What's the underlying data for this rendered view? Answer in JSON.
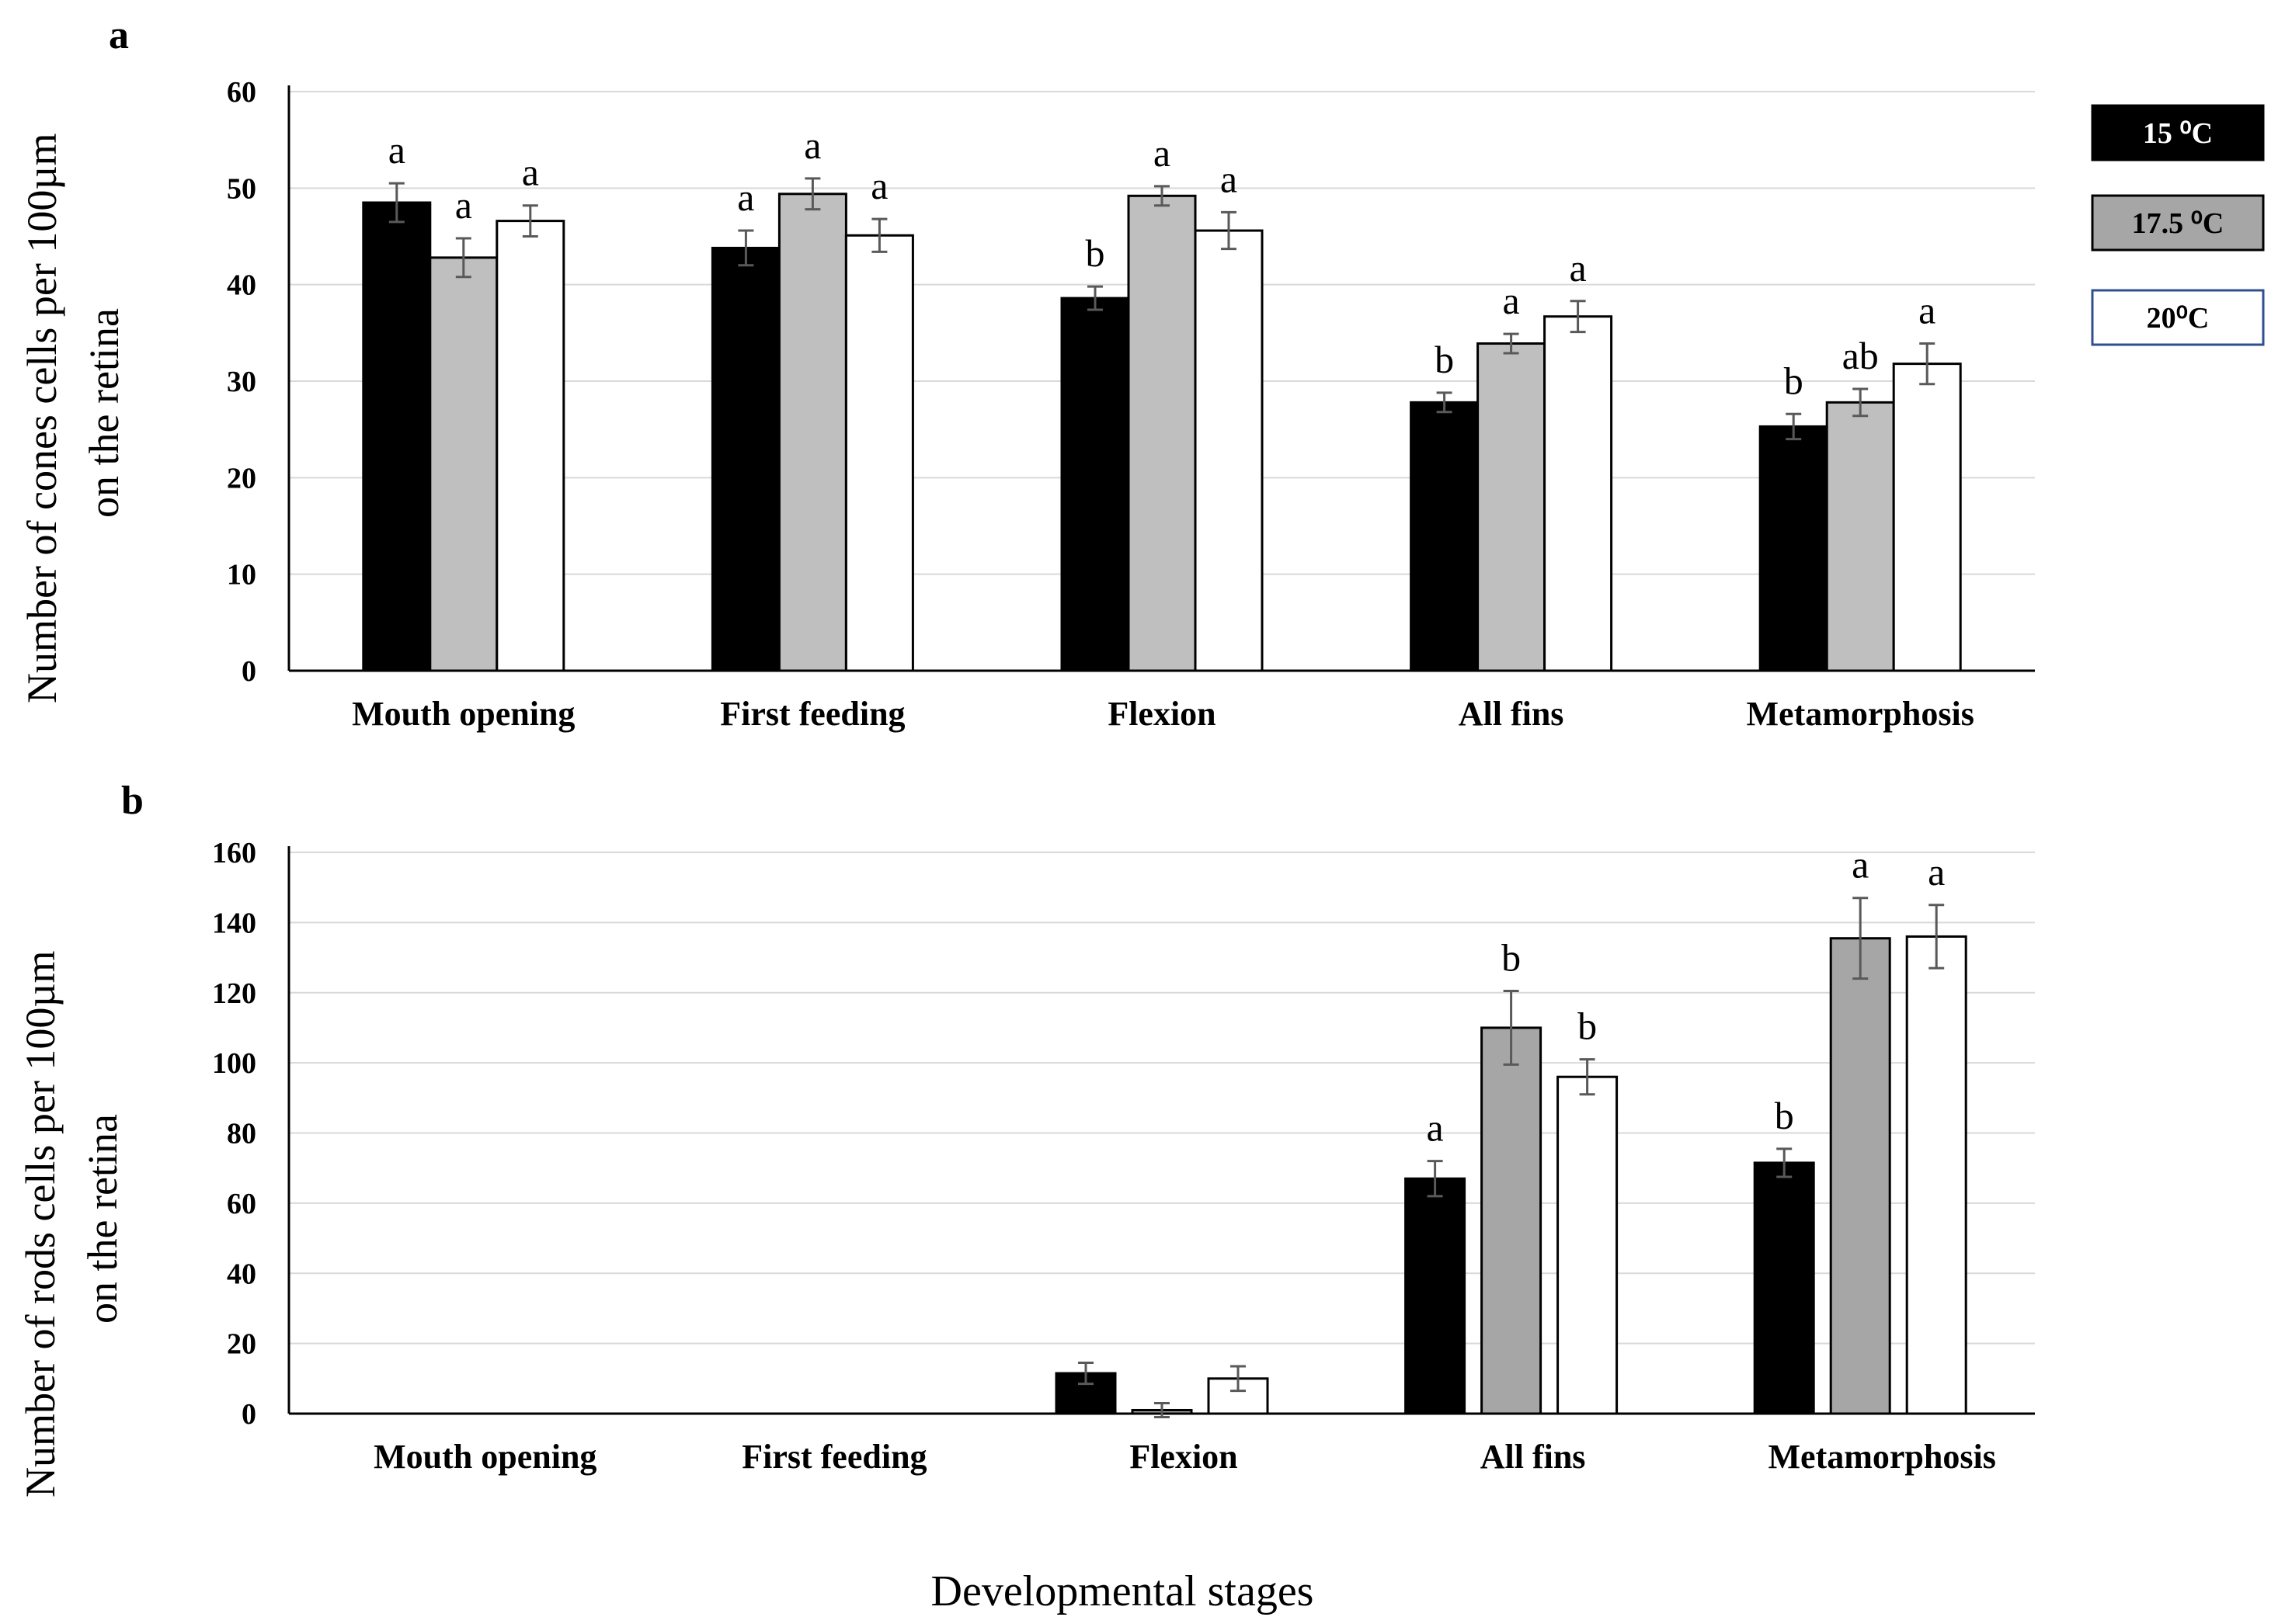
{
  "figure": {
    "x_axis_title": "Developmental stages"
  },
  "legend": [
    {
      "label": "15 ⁰C",
      "fill": "#000000",
      "text_color": "#ffffff",
      "border": "#000000"
    },
    {
      "label": "17.5 ⁰C",
      "fill": "#a6a6a6",
      "text_color": "#000000",
      "border": "#000000"
    },
    {
      "label": "20⁰C",
      "fill": "#ffffff",
      "text_color": "#000000",
      "border": "#2f4f8f"
    }
  ],
  "chart_data": [
    {
      "type": "bar",
      "panel": "a",
      "ylabel": [
        "Number of cones cells per 100µm",
        "on the retina"
      ],
      "ylim": [
        0,
        60
      ],
      "yticks": [
        0,
        10,
        20,
        30,
        40,
        50,
        60
      ],
      "categories": [
        "Mouth opening",
        "First feeding",
        "Flexion",
        "All fins",
        "Metamorphosis"
      ],
      "grid": true,
      "series": [
        {
          "name": "15 ⁰C",
          "color": "#000000",
          "values": [
            48.5,
            43.8,
            38.6,
            27.8,
            25.3
          ],
          "errors": [
            2.0,
            1.8,
            1.2,
            1.0,
            1.3
          ],
          "letters": [
            "a",
            "a",
            "b",
            "b",
            "b"
          ]
        },
        {
          "name": "17.5 ⁰C",
          "color": "#bfbfbf",
          "values": [
            42.8,
            49.4,
            49.2,
            33.9,
            27.8
          ],
          "errors": [
            2.0,
            1.6,
            1.0,
            1.0,
            1.4
          ],
          "letters": [
            "a",
            "a",
            "a",
            "a",
            "ab"
          ]
        },
        {
          "name": "20⁰C",
          "color": "#ffffff",
          "values": [
            46.6,
            45.1,
            45.6,
            36.7,
            31.8
          ],
          "errors": [
            1.6,
            1.7,
            1.9,
            1.6,
            2.1
          ],
          "letters": [
            "a",
            "a",
            "a",
            "a",
            "a"
          ]
        }
      ]
    },
    {
      "type": "bar",
      "panel": "b",
      "ylabel": [
        "Number of rods cells per 100µm",
        "on the retina"
      ],
      "ylim": [
        0,
        160
      ],
      "yticks": [
        0,
        20,
        40,
        60,
        80,
        100,
        120,
        140,
        160
      ],
      "categories": [
        "Mouth opening",
        "First feeding",
        "Flexion",
        "All fins",
        "Metamorphosis"
      ],
      "grid": true,
      "series": [
        {
          "name": "15 ⁰C",
          "color": "#000000",
          "values": [
            0,
            0,
            11.5,
            67,
            71.5
          ],
          "errors": [
            0,
            0,
            3,
            5,
            4
          ],
          "letters": [
            "",
            "",
            "",
            "a",
            "b"
          ]
        },
        {
          "name": "17.5 ⁰C",
          "color": "#a6a6a6",
          "values": [
            0,
            0,
            1,
            110,
            135.5
          ],
          "errors": [
            0,
            0,
            2,
            10.5,
            11.5
          ],
          "letters": [
            "",
            "",
            "",
            "b",
            "a"
          ]
        },
        {
          "name": "20⁰C",
          "color": "#ffffff",
          "values": [
            0,
            0,
            10,
            96,
            136
          ],
          "errors": [
            0,
            0,
            3.5,
            5,
            9
          ],
          "letters": [
            "",
            "",
            "",
            "b",
            "a"
          ]
        }
      ]
    }
  ]
}
